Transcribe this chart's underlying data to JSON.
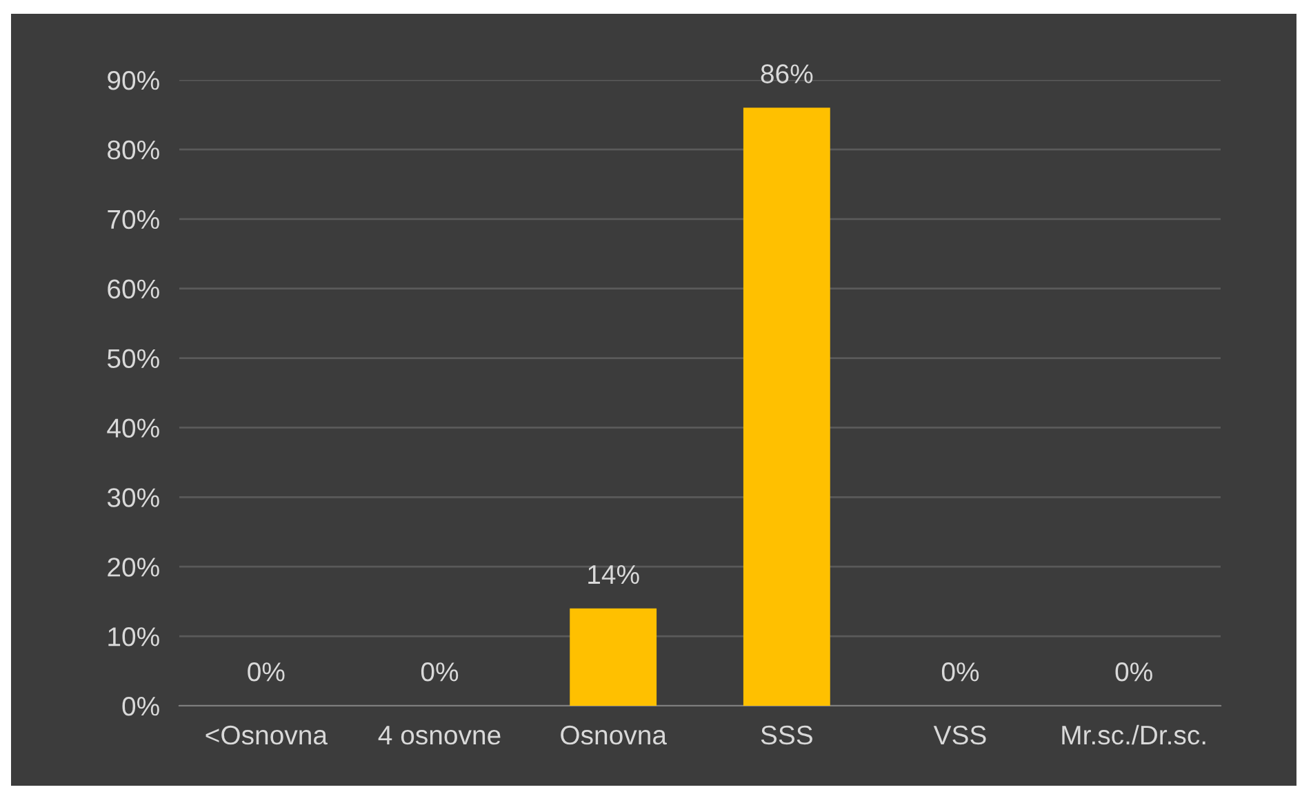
{
  "chart_data": {
    "type": "bar",
    "categories": [
      "<Osnovna",
      "4 osnovne",
      "Osnovna",
      "SSS",
      "VSS",
      "Mr.sc./Dr.sc."
    ],
    "values": [
      0,
      0,
      14,
      86,
      0,
      0
    ],
    "value_labels": [
      "0%",
      "0%",
      "14%",
      "86%",
      "0%",
      "0%"
    ],
    "color": "#ffc000",
    "ylim": [
      0,
      90
    ],
    "yticks": [
      {
        "value": 0,
        "label": "0%"
      },
      {
        "value": 10,
        "label": "10%"
      },
      {
        "value": 20,
        "label": "20%"
      },
      {
        "value": 30,
        "label": "30%"
      },
      {
        "value": 40,
        "label": "40%"
      },
      {
        "value": 50,
        "label": "50%"
      },
      {
        "value": 60,
        "label": "60%"
      },
      {
        "value": 70,
        "label": "70%"
      },
      {
        "value": 80,
        "label": "80%"
      },
      {
        "value": 90,
        "label": "90%"
      }
    ],
    "grid": "y"
  }
}
